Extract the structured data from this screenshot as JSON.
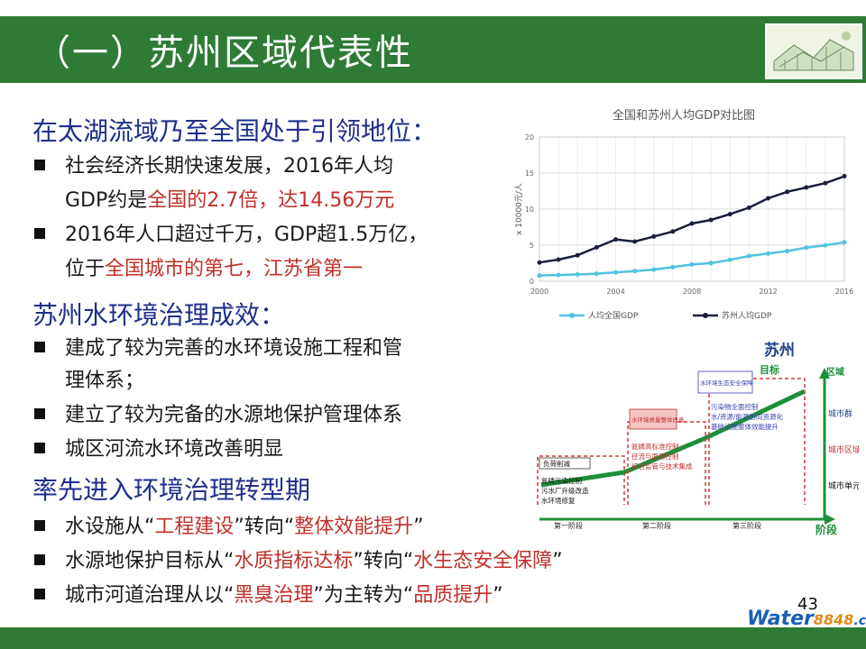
{
  "slide": {
    "title": "（一）苏州区域代表性",
    "page_number": "43",
    "watermark": {
      "part1": "Water",
      "part2": "8848",
      "part3": ".com"
    }
  },
  "section1": {
    "heading": "在太湖流域乃至全国处于引领地位：",
    "bullets": [
      {
        "l1": "社会经济长期快速发展，2016年人均",
        "l2_a": "GDP约是",
        "l2_b": "全国的2.7倍，达14.56万元"
      },
      {
        "l1": "2016年人口超过千万，GDP超1.5万亿，",
        "l2_a": "位于",
        "l2_b": "全国城市的第七，江苏省第一"
      }
    ]
  },
  "section2": {
    "heading": "苏州水环境治理成效：",
    "b1_l1": "建成了较为完善的水环境设施工程和管",
    "b1_l2": "理体系；",
    "b2": "建立了较为完备的水源地保护管理体系",
    "b3": "城区河流水环境改善明显"
  },
  "section3": {
    "heading": "率先进入环境治理转型期",
    "items": [
      {
        "a": "水设施从“",
        "b": "工程建设",
        "c": "”转向“",
        "d": "整体效能提升",
        "e": "”"
      },
      {
        "a": "水源地保护目标从“",
        "b": "水质指标达标",
        "c": "”转向“",
        "d": "水生态安全保障",
        "e": "”"
      },
      {
        "a": "城市河道治理从以“",
        "b": "黑臭治理",
        "c": "”为主转为“",
        "d": "品质提升",
        "e": "”"
      }
    ]
  },
  "chart_data": {
    "type": "line",
    "title": "全国和苏州人均GDP对比图",
    "ylabel": "x 10000元/人",
    "x": [
      2000,
      2001,
      2002,
      2003,
      2004,
      2005,
      2006,
      2007,
      2008,
      2009,
      2010,
      2011,
      2012,
      2013,
      2014,
      2015,
      2016
    ],
    "x_ticks": [
      2000,
      2004,
      2008,
      2012,
      2016
    ],
    "y_ticks": [
      0,
      5,
      10,
      15,
      20
    ],
    "ylim": [
      0,
      20
    ],
    "grid": true,
    "legend_position": "bottom",
    "series": [
      {
        "name": "人均全国GDP",
        "color": "#4fc3e0",
        "values": [
          0.79,
          0.86,
          0.94,
          1.05,
          1.23,
          1.4,
          1.61,
          1.95,
          2.33,
          2.51,
          2.97,
          3.5,
          3.84,
          4.18,
          4.66,
          4.99,
          5.4
        ]
      },
      {
        "name": "苏州人均GDP",
        "color": "#1a1f3c",
        "values": [
          2.6,
          3.0,
          3.6,
          4.7,
          5.8,
          5.5,
          6.2,
          6.9,
          8.0,
          8.5,
          9.3,
          10.2,
          11.5,
          12.4,
          13.0,
          13.6,
          14.56
        ]
      }
    ]
  },
  "stage_diagram": {
    "city": "苏州",
    "target_label": "目标",
    "stage_axis_label": "阶段",
    "scale_labels": [
      "区域",
      "城市群",
      "城市区域",
      "城市单元"
    ],
    "stage_labels": [
      "第一阶段",
      "第二阶段",
      "第三阶段"
    ],
    "boxes": [
      {
        "title": "负荷削减",
        "lines": [
          "氮磷污染控制",
          "污水厂升级改造",
          "水环境修复"
        ]
      },
      {
        "title": "水环境质量整体改善",
        "lines": [
          "氮磷高标准控制",
          "径流与面源控制",
          "综合监管与技术集成"
        ]
      },
      {
        "title": "水环境生态安全保障",
        "lines": [
          "污染物全面控制",
          "水/资源/能源协同资源化",
          "基础设施整体效能提升"
        ]
      }
    ],
    "colors": {
      "arrow": "#1f8f3a",
      "dash": "#d03a3a",
      "title_box": "#f4c6c6",
      "blue_box": "#3a3fb0"
    }
  }
}
